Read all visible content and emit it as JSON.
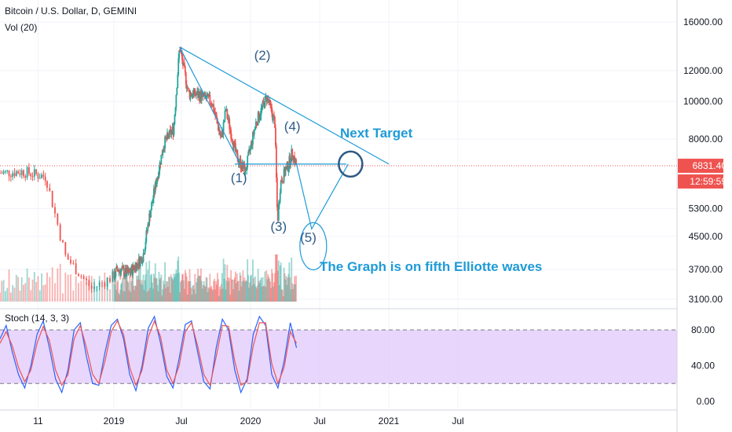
{
  "legend": {
    "title": "Bitcoin / U.S. Dollar, D, GEMINI",
    "volume": "Vol (20)",
    "stoch": "Stoch (14, 3, 3)"
  },
  "price_badge": {
    "price": "6831.40",
    "countdown": "12:59:59"
  },
  "colors": {
    "background": "#ffffff",
    "grid": "#f0f3fa",
    "axis_text": "#131722",
    "up": "#26a69a",
    "down": "#ef5350",
    "annotation": "#1e9bd7",
    "wave_label": "#2e5a87",
    "price_line": "#ef5350",
    "stoch_band": "#e1c8fb",
    "stoch_k": "#2962ff",
    "stoch_d": "#ef5350"
  },
  "annotations": {
    "next_target": "Next Target",
    "note": "The Graph is on fifth Elliotte waves",
    "waves": [
      "(1)",
      "(2)",
      "(3)",
      "(4)",
      "(5)"
    ]
  },
  "chart_data": [
    {
      "type": "line",
      "title": "Bitcoin / U.S. Dollar, D, GEMINI",
      "scale": "log",
      "ylim": [
        3100,
        16000
      ],
      "y_ticks": [
        "16000.00",
        "12000.00",
        "10000.00",
        "8000.00",
        "5300.00",
        "4500.00",
        "3700.00",
        "3100.00"
      ],
      "x_ticks": [
        "11",
        "2019",
        "Jul",
        "2020",
        "Jul",
        "2021",
        "Jul"
      ],
      "x_tick_dates": [
        "2018-11",
        "2019-01",
        "2019-07",
        "2020-01",
        "2020-07",
        "2021-01",
        "2021-07"
      ],
      "last_price": 6831.4,
      "price_path": [
        {
          "date": "2018-09-20",
          "close": 6550
        },
        {
          "date": "2018-10-15",
          "close": 6600
        },
        {
          "date": "2018-11-10",
          "close": 6400
        },
        {
          "date": "2018-11-25",
          "close": 4000
        },
        {
          "date": "2018-12-15",
          "close": 3300
        },
        {
          "date": "2019-01-10",
          "close": 3700
        },
        {
          "date": "2019-02-10",
          "close": 3600
        },
        {
          "date": "2019-03-20",
          "close": 4000
        },
        {
          "date": "2019-04-05",
          "close": 5000
        },
        {
          "date": "2019-05-15",
          "close": 7800
        },
        {
          "date": "2019-06-10",
          "close": 8500
        },
        {
          "date": "2019-06-26",
          "close": 13800
        },
        {
          "date": "2019-07-20",
          "close": 10500
        },
        {
          "date": "2019-08-15",
          "close": 10400
        },
        {
          "date": "2019-09-20",
          "close": 10000
        },
        {
          "date": "2019-10-15",
          "close": 8000
        },
        {
          "date": "2019-10-27",
          "close": 9500
        },
        {
          "date": "2019-11-25",
          "close": 7200
        },
        {
          "date": "2019-12-18",
          "close": 6600
        },
        {
          "date": "2020-01-15",
          "close": 8800
        },
        {
          "date": "2020-02-13",
          "close": 10300
        },
        {
          "date": "2020-03-05",
          "close": 8800
        },
        {
          "date": "2020-03-12",
          "close": 4900
        },
        {
          "date": "2020-03-20",
          "close": 6200
        },
        {
          "date": "2020-04-10",
          "close": 6900
        },
        {
          "date": "2020-04-20",
          "close": 7400
        },
        {
          "date": "2020-05-01",
          "close": 6831.4
        }
      ],
      "trendlines": [
        {
          "from": {
            "date": "2019-06-26",
            "price": 13800
          },
          "to": {
            "date": "2021-01-01",
            "price": 6900
          }
        },
        {
          "from": {
            "date": "2019-11-20",
            "price": 6900
          },
          "to": {
            "date": "2020-09-10",
            "price": 6900
          }
        },
        {
          "from": {
            "date": "2019-06-26",
            "price": 13800
          },
          "to": {
            "date": "2019-12-01",
            "price": 7000
          }
        }
      ],
      "projection": [
        {
          "date": "2020-05-01",
          "price": 6900
        },
        {
          "date": "2020-06-10",
          "price": 4700
        },
        {
          "date": "2020-09-15",
          "price": 6900
        }
      ],
      "wave_labels": [
        {
          "label": "(1)",
          "date": "2019-12-01",
          "price": 6200
        },
        {
          "label": "(2)",
          "date": "2020-02-01",
          "price": 12800
        },
        {
          "label": "(3)",
          "date": "2020-03-15",
          "price": 4650
        },
        {
          "label": "(4)",
          "date": "2020-04-20",
          "price": 8400
        },
        {
          "label": "(5)",
          "date": "2020-06-01",
          "price": 4350
        }
      ]
    },
    {
      "type": "line",
      "title": "Stoch (14, 3, 3)",
      "ylim": [
        0,
        100
      ],
      "y_ticks": [
        "80.00",
        "40.00",
        "0.00"
      ],
      "bands": [
        20,
        80
      ],
      "series": [
        {
          "name": "%K",
          "values": [
            70,
            85,
            55,
            30,
            15,
            40,
            75,
            90,
            60,
            25,
            10,
            35,
            80,
            88,
            50,
            20,
            18,
            55,
            85,
            92,
            70,
            30,
            12,
            40,
            82,
            95,
            65,
            28,
            15,
            48,
            86,
            90,
            55,
            22,
            14,
            60,
            92,
            80,
            35,
            10,
            25,
            75,
            95,
            85,
            30,
            15,
            45,
            88,
            60
          ]
        },
        {
          "name": "%D",
          "values": [
            65,
            78,
            62,
            38,
            22,
            35,
            65,
            84,
            68,
            35,
            18,
            30,
            70,
            85,
            60,
            30,
            20,
            45,
            78,
            90,
            75,
            38,
            18,
            35,
            72,
            90,
            72,
            35,
            20,
            40,
            78,
            88,
            62,
            30,
            18,
            50,
            85,
            84,
            45,
            18,
            22,
            62,
            88,
            88,
            42,
            20,
            38,
            78,
            65
          ]
        }
      ]
    }
  ]
}
